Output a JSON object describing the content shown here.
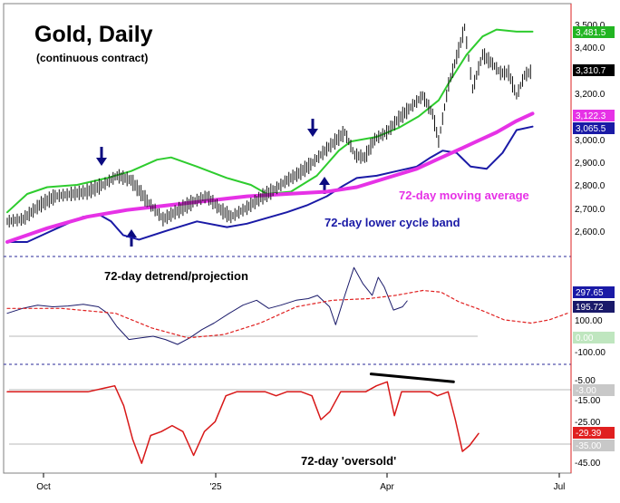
{
  "title": "Gold, Daily",
  "subtitle": "(continuous contract)",
  "x_axis": {
    "labels": [
      "Oct",
      "'25",
      "Apr",
      "Jul"
    ]
  },
  "colors": {
    "price": "#111111",
    "upper_band": "#2ecc2e",
    "lower_band": "#1a1aa6",
    "moving_average": "#e632e6",
    "detrend": "#1a1a6a",
    "projection": "#e02020",
    "oscillator": "#d81818",
    "divider": "#2a2a9a",
    "grid": "#b9b9b9"
  },
  "panels": {
    "price": {
      "annotations": {
        "moving_average": "72-day moving average",
        "lower_band": "72-day lower cycle band"
      },
      "y_ticks": [
        "3,500.0",
        "3,400.0",
        "3,300.0",
        "3,200.0",
        "3,100.0",
        "3,000.0",
        "2,900.0",
        "2,800.0",
        "2,700.0",
        "2,600.0"
      ],
      "badges": [
        {
          "text": "3,481.5",
          "bg": "#22b522",
          "fg": "#ffffff"
        },
        {
          "text": "3,310.7",
          "bg": "#000000",
          "fg": "#ffffff"
        },
        {
          "text": "3,122.3",
          "bg": "#e632e6",
          "fg": "#ffffff"
        },
        {
          "text": "3,065.5",
          "bg": "#1a1aa6",
          "fg": "#ffffff"
        }
      ]
    },
    "detrend": {
      "label": "72-day detrend/projection",
      "y_ticks": [
        "100.00",
        "-100.00"
      ],
      "badges": [
        {
          "text": "297.65",
          "bg": "#1a1aa6",
          "fg": "#ffffff"
        },
        {
          "text": "195.72",
          "bg": "#1a1a6a",
          "fg": "#ffffff"
        },
        {
          "text": "0.00",
          "bg": "#bfe6bf",
          "fg": "#ffffff"
        }
      ]
    },
    "oscillator": {
      "label": "72-day 'oversold'",
      "y_ticks": [
        "-5.00",
        "-15.00",
        "-25.00",
        "-45.00"
      ],
      "badges": [
        {
          "text": "-3.00",
          "bg": "#c8c8c8",
          "fg": "#ffffff"
        },
        {
          "text": "-29.39",
          "bg": "#e02020",
          "fg": "#ffffff"
        },
        {
          "text": "-35.00",
          "bg": "#c8c8c8",
          "fg": "#ffffff"
        }
      ]
    }
  },
  "chart_data": [
    {
      "type": "line",
      "panel": "price",
      "ylim": [
        2540,
        3540
      ],
      "x_index_range": [
        0,
        236
      ],
      "series": [
        {
          "key": "price",
          "points": [
            [
              0,
              2650
            ],
            [
              8,
              2660
            ],
            [
              16,
              2720
            ],
            [
              24,
              2760
            ],
            [
              32,
              2770
            ],
            [
              40,
              2780
            ],
            [
              48,
              2810
            ],
            [
              55,
              2850
            ],
            [
              62,
              2830
            ],
            [
              70,
              2740
            ],
            [
              78,
              2660
            ],
            [
              86,
              2700
            ],
            [
              94,
              2740
            ],
            [
              100,
              2760
            ],
            [
              107,
              2700
            ],
            [
              112,
              2670
            ],
            [
              120,
              2710
            ],
            [
              128,
              2760
            ],
            [
              134,
              2790
            ],
            [
              140,
              2830
            ],
            [
              146,
              2860
            ],
            [
              152,
              2900
            ],
            [
              158,
              2950
            ],
            [
              164,
              3000
            ],
            [
              169,
              3040
            ],
            [
              174,
              2940
            ],
            [
              179,
              2930
            ],
            [
              184,
              3010
            ],
            [
              190,
              3040
            ],
            [
              196,
              3100
            ],
            [
              202,
              3150
            ],
            [
              208,
              3200
            ],
            [
              213,
              3120
            ],
            [
              216,
              3000
            ],
            [
              221,
              3250
            ],
            [
              226,
              3400
            ],
            [
              229,
              3500
            ],
            [
              233,
              3230
            ],
            [
              238,
              3380
            ],
            [
              243,
              3340
            ],
            [
              247,
              3300
            ],
            [
              251,
              3300
            ],
            [
              255,
              3200
            ],
            [
              259,
              3290
            ],
            [
              263,
              3310
            ]
          ]
        },
        {
          "key": "upper_band",
          "points": [
            [
              0,
              2690
            ],
            [
              10,
              2770
            ],
            [
              20,
              2800
            ],
            [
              35,
              2810
            ],
            [
              50,
              2840
            ],
            [
              62,
              2870
            ],
            [
              75,
              2920
            ],
            [
              82,
              2930
            ],
            [
              95,
              2890
            ],
            [
              110,
              2840
            ],
            [
              122,
              2810
            ],
            [
              130,
              2770
            ],
            [
              142,
              2780
            ],
            [
              155,
              2850
            ],
            [
              166,
              2960
            ],
            [
              172,
              3000
            ],
            [
              185,
              3020
            ],
            [
              196,
              3060
            ],
            [
              206,
              3110
            ],
            [
              216,
              3180
            ],
            [
              222,
              3270
            ],
            [
              230,
              3380
            ],
            [
              238,
              3460
            ],
            [
              245,
              3490
            ],
            [
              255,
              3481
            ],
            [
              263,
              3481
            ]
          ]
        },
        {
          "key": "lower_band",
          "points": [
            [
              0,
              2560
            ],
            [
              10,
              2560
            ],
            [
              20,
              2600
            ],
            [
              30,
              2640
            ],
            [
              38,
              2670
            ],
            [
              46,
              2680
            ],
            [
              52,
              2650
            ],
            [
              58,
              2590
            ],
            [
              66,
              2570
            ],
            [
              80,
              2610
            ],
            [
              95,
              2650
            ],
            [
              110,
              2625
            ],
            [
              120,
              2640
            ],
            [
              140,
              2690
            ],
            [
              150,
              2720
            ],
            [
              160,
              2760
            ],
            [
              168,
              2805
            ],
            [
              175,
              2840
            ],
            [
              185,
              2850
            ],
            [
              195,
              2870
            ],
            [
              205,
              2890
            ],
            [
              212,
              2930
            ],
            [
              218,
              2960
            ],
            [
              225,
              2950
            ],
            [
              232,
              2890
            ],
            [
              240,
              2880
            ],
            [
              248,
              2950
            ],
            [
              255,
              3050
            ],
            [
              263,
              3065
            ]
          ]
        },
        {
          "key": "moving_average",
          "points": [
            [
              0,
              2560
            ],
            [
              20,
              2620
            ],
            [
              40,
              2670
            ],
            [
              60,
              2700
            ],
            [
              80,
              2720
            ],
            [
              100,
              2740
            ],
            [
              120,
              2760
            ],
            [
              140,
              2770
            ],
            [
              160,
              2780
            ],
            [
              175,
              2800
            ],
            [
              190,
              2840
            ],
            [
              205,
              2880
            ],
            [
              215,
              2920
            ],
            [
              225,
              2960
            ],
            [
              235,
              3000
            ],
            [
              245,
              3040
            ],
            [
              255,
              3090
            ],
            [
              263,
              3122
            ]
          ]
        }
      ]
    },
    {
      "type": "line",
      "panel": "detrend",
      "ylim": [
        -170,
        440
      ],
      "x_index_range": [
        0,
        310
      ],
      "series": [
        {
          "key": "detrend",
          "points": [
            [
              0,
              120
            ],
            [
              10,
              150
            ],
            [
              20,
              170
            ],
            [
              30,
              160
            ],
            [
              40,
              165
            ],
            [
              50,
              175
            ],
            [
              60,
              160
            ],
            [
              66,
              120
            ],
            [
              72,
              40
            ],
            [
              80,
              -40
            ],
            [
              88,
              -30
            ],
            [
              96,
              -20
            ],
            [
              104,
              -40
            ],
            [
              112,
              -70
            ],
            [
              120,
              -30
            ],
            [
              128,
              20
            ],
            [
              136,
              60
            ],
            [
              146,
              120
            ],
            [
              155,
              170
            ],
            [
              164,
              200
            ],
            [
              172,
              150
            ],
            [
              180,
              170
            ],
            [
              190,
              200
            ],
            [
              198,
              210
            ],
            [
              204,
              230
            ],
            [
              212,
              160
            ],
            [
              216,
              50
            ],
            [
              222,
              230
            ],
            [
              228,
              400
            ],
            [
              234,
              300
            ],
            [
              240,
              230
            ],
            [
              244,
              340
            ],
            [
              248,
              280
            ],
            [
              254,
              140
            ],
            [
              260,
              160
            ],
            [
              263,
              196
            ]
          ]
        },
        {
          "key": "projection",
          "points": [
            [
              0,
              150
            ],
            [
              30,
              150
            ],
            [
              60,
              120
            ],
            [
              80,
              30
            ],
            [
              100,
              -30
            ],
            [
              120,
              -10
            ],
            [
              140,
              60
            ],
            [
              160,
              160
            ],
            [
              180,
              200
            ],
            [
              200,
              210
            ],
            [
              215,
              230
            ],
            [
              230,
              260
            ],
            [
              240,
              250
            ],
            [
              250,
              190
            ],
            [
              260,
              150
            ],
            [
              275,
              80
            ],
            [
              290,
              60
            ],
            [
              300,
              80
            ],
            [
              310,
              120
            ]
          ]
        }
      ]
    },
    {
      "type": "line",
      "panel": "oscillator",
      "ylim": [
        -48,
        4
      ],
      "x_index_range": [
        0,
        263
      ],
      "series": [
        {
          "key": "oscillator",
          "points": [
            [
              0,
              -8
            ],
            [
              15,
              -8
            ],
            [
              25,
              -8
            ],
            [
              35,
              -8
            ],
            [
              45,
              -8
            ],
            [
              55,
              -6
            ],
            [
              60,
              -5
            ],
            [
              65,
              -15
            ],
            [
              70,
              -32
            ],
            [
              75,
              -44
            ],
            [
              80,
              -30
            ],
            [
              86,
              -28
            ],
            [
              92,
              -25
            ],
            [
              98,
              -28
            ],
            [
              104,
              -40
            ],
            [
              110,
              -28
            ],
            [
              116,
              -23
            ],
            [
              122,
              -10
            ],
            [
              128,
              -8
            ],
            [
              136,
              -8
            ],
            [
              144,
              -8
            ],
            [
              150,
              -10
            ],
            [
              156,
              -8
            ],
            [
              164,
              -8
            ],
            [
              170,
              -10
            ],
            [
              175,
              -22
            ],
            [
              180,
              -18
            ],
            [
              186,
              -8
            ],
            [
              194,
              -8
            ],
            [
              200,
              -8
            ],
            [
              206,
              -5
            ],
            [
              212,
              -3
            ],
            [
              216,
              -20
            ],
            [
              220,
              -8
            ],
            [
              228,
              -8
            ],
            [
              236,
              -8
            ],
            [
              240,
              -10
            ],
            [
              246,
              -8
            ],
            [
              250,
              -22
            ],
            [
              254,
              -38
            ],
            [
              258,
              -35
            ],
            [
              263,
              -29
            ]
          ]
        },
        {
          "key": "divergence",
          "points": [
            [
              203,
              1
            ],
            [
              249,
              -3
            ]
          ]
        }
      ]
    }
  ]
}
